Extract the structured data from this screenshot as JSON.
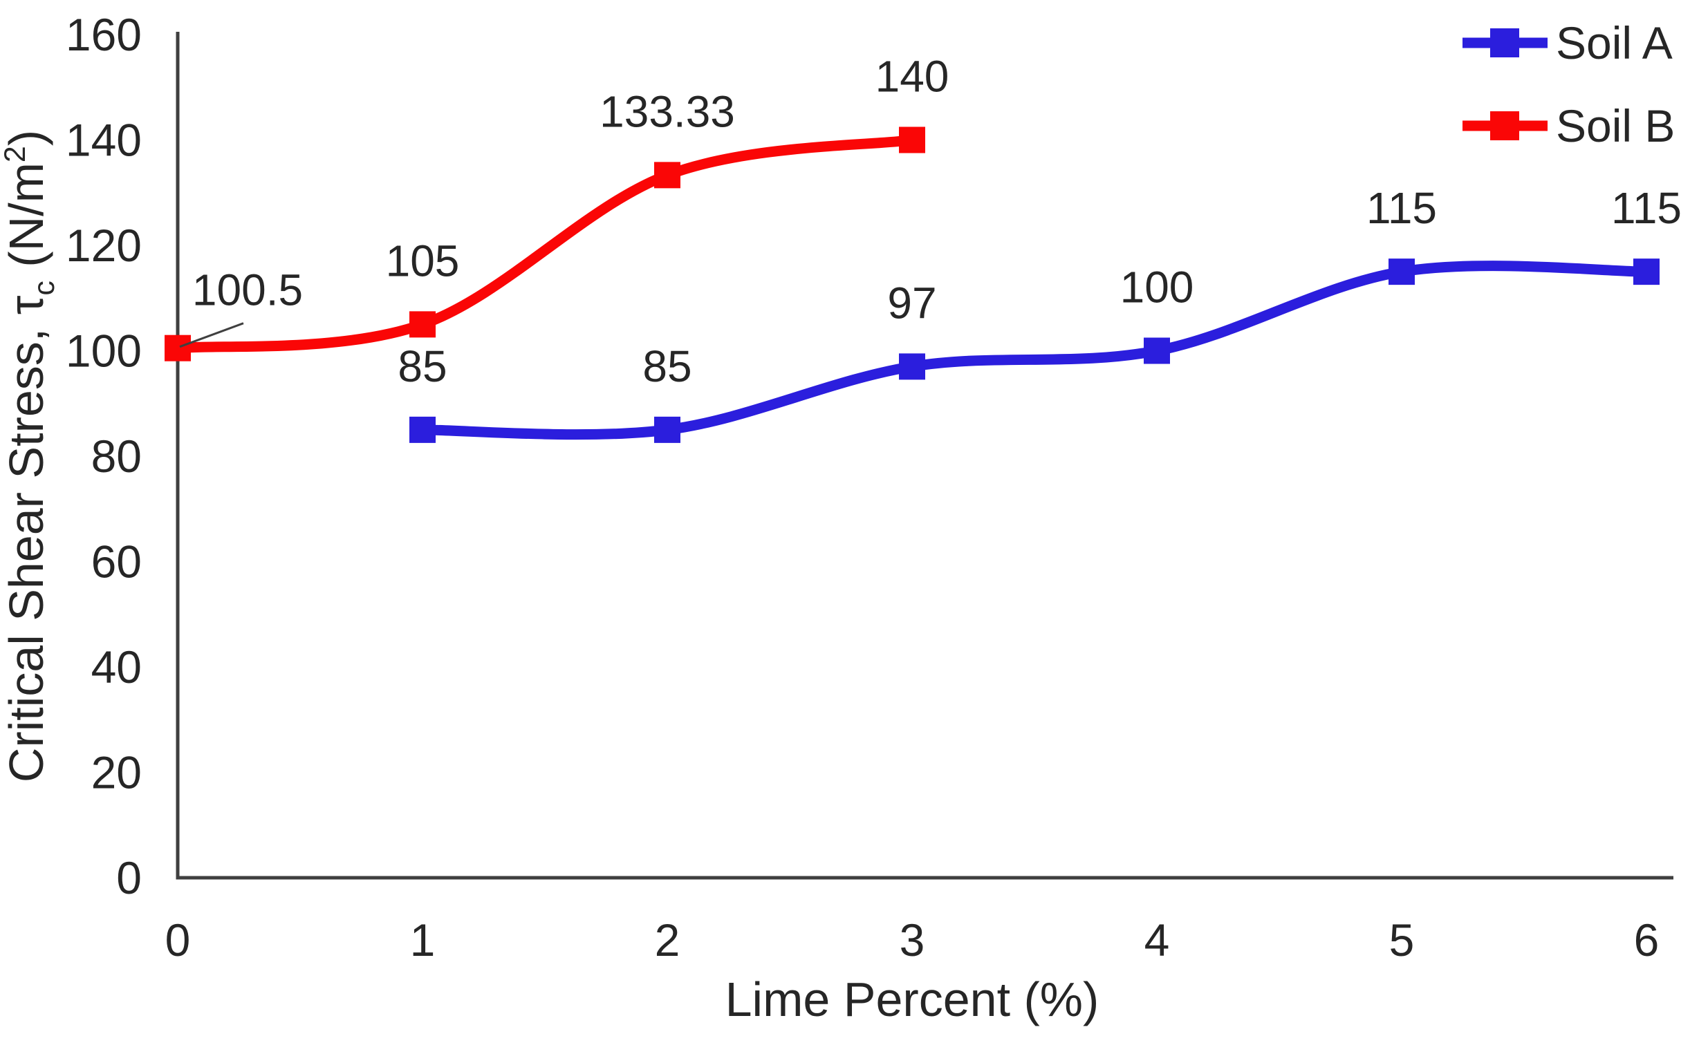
{
  "chart_data": {
    "type": "line",
    "title": "",
    "xlabel": "Lime Percent (%)",
    "ylabel_text": "Critical Shear Stress, τc (N/m²)",
    "ylabel_parts": {
      "prefix": "Critical Shear Stress, τ",
      "sub": "c",
      "mid": " (N/m",
      "sup": "2",
      "suffix": ")"
    },
    "xlim": [
      0,
      6
    ],
    "ylim": [
      0,
      160
    ],
    "x_ticks": [
      "0",
      "1",
      "2",
      "3",
      "4",
      "5",
      "6"
    ],
    "y_ticks": [
      "0",
      "20",
      "40",
      "60",
      "80",
      "100",
      "120",
      "140",
      "160"
    ],
    "grid": false,
    "line_smoothing": true,
    "legend_position": "top-right",
    "legend": [
      "Soil A",
      "Soil B"
    ],
    "series": [
      {
        "name": "Soil A",
        "color": "#2B1EDD",
        "marker": "square",
        "x": [
          1,
          2,
          3,
          4,
          5,
          6
        ],
        "y": [
          85,
          85,
          97,
          100,
          115,
          115
        ],
        "labels": [
          "85",
          "85",
          "97",
          "100",
          "115",
          "115"
        ]
      },
      {
        "name": "Soil B",
        "color": "#FA0606",
        "marker": "square",
        "x": [
          0,
          1,
          2,
          3
        ],
        "y": [
          100.5,
          105,
          133.33,
          140
        ],
        "labels": [
          "100.5",
          "105",
          "133.33",
          "140"
        ],
        "first_label_annotation": {
          "dx": 101,
          "dy": -84,
          "leader": true
        }
      }
    ]
  },
  "colors": {
    "background": "#FFFFFF",
    "axis": "#3F3F3F",
    "text": "#262626",
    "leader_line": "#404040",
    "soil_a": "#2B1EDD",
    "soil_b": "#FA0606"
  }
}
